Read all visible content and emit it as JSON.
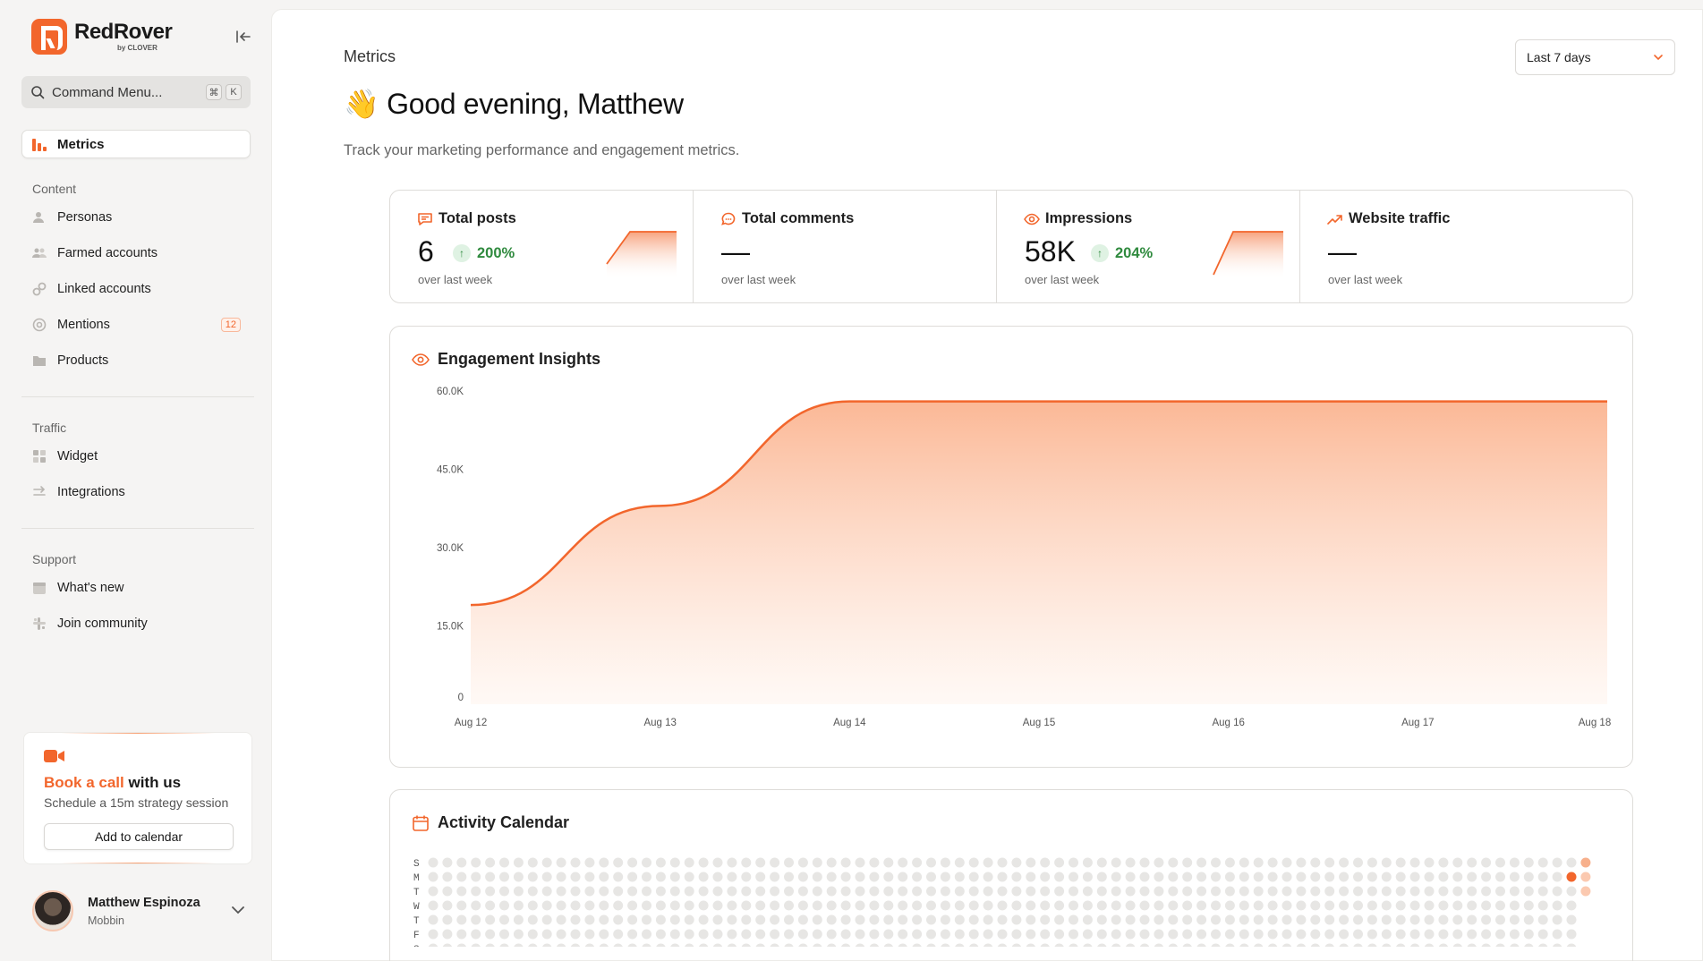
{
  "brand": {
    "name": "RedRover",
    "sub": "by CLOVER"
  },
  "command": {
    "label": "Command Menu...",
    "kbd1": "⌘",
    "kbd2": "K"
  },
  "nav": {
    "active": "Metrics",
    "content_label": "Content",
    "content_items": [
      {
        "label": "Personas",
        "icon": "user-icon"
      },
      {
        "label": "Farmed accounts",
        "icon": "users-icon"
      },
      {
        "label": "Linked accounts",
        "icon": "link-icon"
      },
      {
        "label": "Mentions",
        "icon": "at-icon",
        "badge": "12"
      },
      {
        "label": "Products",
        "icon": "folder-icon"
      }
    ],
    "traffic_label": "Traffic",
    "traffic_items": [
      {
        "label": "Widget",
        "icon": "grid-icon"
      },
      {
        "label": "Integrations",
        "icon": "integrations-icon"
      }
    ],
    "support_label": "Support",
    "support_items": [
      {
        "label": "What's new",
        "icon": "calendar-icon"
      },
      {
        "label": "Join community",
        "icon": "slack-icon"
      }
    ]
  },
  "promo": {
    "title_highlight": "Book a call",
    "title_rest": " with us",
    "subtitle": "Schedule a 15m strategy session",
    "button": "Add to calendar"
  },
  "user": {
    "name": "Matthew Espinoza",
    "org": "Mobbin"
  },
  "header": {
    "breadcrumb": "Metrics",
    "range": "Last 7 days",
    "greeting": "👋 Good evening, Matthew",
    "tagline": "Track your marketing performance and engagement metrics."
  },
  "kpis": [
    {
      "title": "Total posts",
      "value": "6",
      "delta": "200%",
      "foot": "over last week",
      "spark": true
    },
    {
      "title": "Total comments",
      "value": "—",
      "delta": "",
      "foot": "over last week",
      "spark": false
    },
    {
      "title": "Impressions",
      "value": "58K",
      "delta": "204%",
      "foot": "over last week",
      "spark": true
    },
    {
      "title": "Website traffic",
      "value": "—",
      "delta": "",
      "foot": "over last week",
      "spark": false
    }
  ],
  "engagement": {
    "title": "Engagement Insights"
  },
  "activity": {
    "title": "Activity Calendar",
    "day_labels": [
      "S",
      "M",
      "T",
      "W",
      "T",
      "F",
      "S"
    ]
  },
  "colors": {
    "accent": "#f2662c",
    "accent_light": "#fcd4c2",
    "positive": "#2f8a3e"
  },
  "chart_data": {
    "type": "area",
    "x": [
      "Aug 12",
      "Aug 13",
      "Aug 14",
      "Aug 15",
      "Aug 16",
      "Aug 17",
      "Aug 18"
    ],
    "series": [
      {
        "values": [
          19000,
          38000,
          58000,
          58000,
          58000,
          58000,
          58000
        ]
      }
    ],
    "y_ticks": [
      "0",
      "15.0K",
      "30.0K",
      "45.0K",
      "60.0K"
    ],
    "ylim": [
      0,
      60000
    ],
    "grid": false
  }
}
